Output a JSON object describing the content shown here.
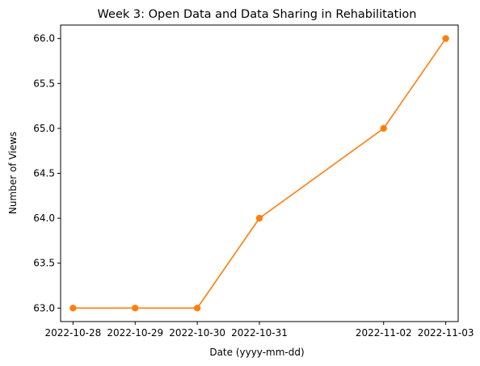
{
  "chart_data": {
    "type": "line",
    "title": "Week 3: Open Data and Data Sharing in Rehabilitation",
    "xlabel": "Date (yyyy-mm-dd)",
    "ylabel": "Number of Views",
    "x": [
      "2022-10-28",
      "2022-10-29",
      "2022-10-30",
      "2022-10-31",
      "2022-11-02",
      "2022-11-03"
    ],
    "series": [
      {
        "values": [
          63.0,
          63.0,
          63.0,
          64.0,
          65.0,
          66.0
        ],
        "color": "#ff7f0e",
        "line_color": "#ff7f0e",
        "marker": "circle"
      }
    ],
    "xlim": [
      "2022-10-27 19:12",
      "2022-11-03 04:48"
    ],
    "ylim": [
      62.85,
      66.15
    ],
    "x_tick_labels": [
      "2022-10-28",
      "2022-10-29",
      "2022-10-30",
      "2022-10-31",
      "2022-11-02",
      "2022-11-03"
    ],
    "y_ticks": [
      63.0,
      63.5,
      64.0,
      64.5,
      65.0,
      65.5,
      66.0
    ],
    "y_tick_labels": [
      "63.0",
      "63.5",
      "64.0",
      "64.5",
      "65.0",
      "65.5",
      "66.0"
    ],
    "grid": false,
    "legend": "none"
  }
}
